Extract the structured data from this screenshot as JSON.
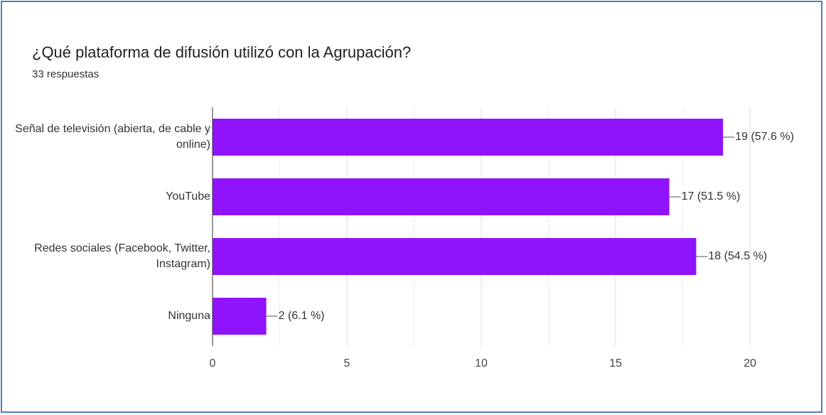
{
  "chart_data": {
    "type": "barh",
    "title": "¿Qué plataforma de difusión utilizó con la Agrupación?",
    "subtitle": "33 respuestas",
    "categories": [
      "Señal de televisión (abierta, de cable y online)",
      "YouTube",
      "Redes sociales (Facebook, Twitter, Instagram)",
      "Ninguna"
    ],
    "values": [
      19,
      17,
      18,
      2
    ],
    "value_labels": [
      "19 (57.6 %)",
      "17 (51.5 %)",
      "18 (54.5 %)",
      "2 (6.1 %)"
    ],
    "color": "#9013fe",
    "xlim": [
      0,
      20
    ],
    "xticks": [
      0,
      5,
      10,
      15,
      20
    ],
    "minor_grid": [
      2.5,
      7.5,
      12.5,
      17.5
    ],
    "grid": true
  }
}
